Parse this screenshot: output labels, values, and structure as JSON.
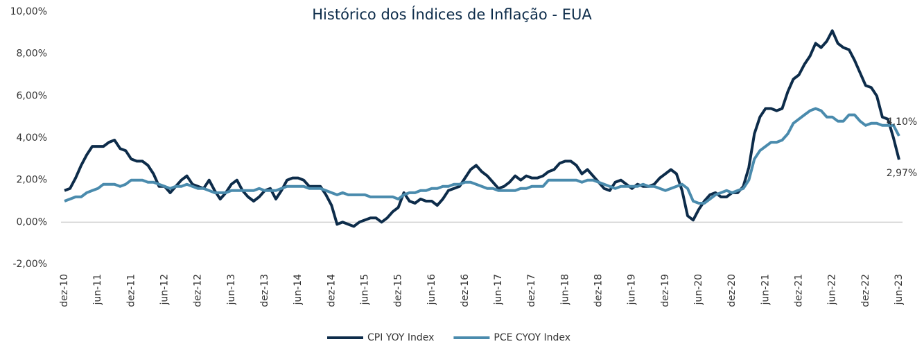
{
  "chart_data": {
    "type": "line",
    "title": "Histórico dos Índices de Inflação - EUA",
    "categories": [
      "dez-10",
      null,
      null,
      null,
      null,
      null,
      "jun-11",
      null,
      null,
      null,
      null,
      null,
      "dez-11",
      null,
      null,
      null,
      null,
      null,
      "jun-12",
      null,
      null,
      null,
      null,
      null,
      "dez-12",
      null,
      null,
      null,
      null,
      null,
      "jun-13",
      null,
      null,
      null,
      null,
      null,
      "dez-13",
      null,
      null,
      null,
      null,
      null,
      "jun-14",
      null,
      null,
      null,
      null,
      null,
      "dez-14",
      null,
      null,
      null,
      null,
      null,
      "jun-15",
      null,
      null,
      null,
      null,
      null,
      "dez-15",
      null,
      null,
      null,
      null,
      null,
      "jun-16",
      null,
      null,
      null,
      null,
      null,
      "dez-16",
      null,
      null,
      null,
      null,
      null,
      "jun-17",
      null,
      null,
      null,
      null,
      null,
      "dez-17",
      null,
      null,
      null,
      null,
      null,
      "jun-18",
      null,
      null,
      null,
      null,
      null,
      "dez-18",
      null,
      null,
      null,
      null,
      null,
      "jun-19",
      null,
      null,
      null,
      null,
      null,
      "dez-19",
      null,
      null,
      null,
      null,
      null,
      "jun-20",
      null,
      null,
      null,
      null,
      null,
      "dez-20",
      null,
      null,
      null,
      null,
      null,
      "jun-21",
      null,
      null,
      null,
      null,
      null,
      "dez-21",
      null,
      null,
      null,
      null,
      null,
      "jun-22",
      null,
      null,
      null,
      null,
      null,
      "dez-22",
      null,
      null,
      null,
      null,
      null,
      "jun-23"
    ],
    "series": [
      {
        "name": "CPI YOY Index",
        "color": "#0d2c4a",
        "end_label": "2,97%",
        "values": [
          1.5,
          1.6,
          2.1,
          2.7,
          3.2,
          3.6,
          3.6,
          3.6,
          3.8,
          3.9,
          3.5,
          3.4,
          3.0,
          2.9,
          2.9,
          2.7,
          2.3,
          1.7,
          1.7,
          1.4,
          1.7,
          2.0,
          2.2,
          1.8,
          1.7,
          1.6,
          2.0,
          1.5,
          1.1,
          1.4,
          1.8,
          2.0,
          1.5,
          1.2,
          1.0,
          1.2,
          1.5,
          1.6,
          1.1,
          1.5,
          2.0,
          2.1,
          2.1,
          2.0,
          1.7,
          1.7,
          1.7,
          1.3,
          0.8,
          -0.1,
          0.0,
          -0.1,
          -0.2,
          0.0,
          0.1,
          0.2,
          0.2,
          0.0,
          0.2,
          0.5,
          0.7,
          1.4,
          1.0,
          0.9,
          1.1,
          1.0,
          1.0,
          0.8,
          1.1,
          1.5,
          1.6,
          1.7,
          2.1,
          2.5,
          2.7,
          2.4,
          2.2,
          1.9,
          1.6,
          1.7,
          1.9,
          2.2,
          2.0,
          2.2,
          2.1,
          2.1,
          2.2,
          2.4,
          2.5,
          2.8,
          2.9,
          2.9,
          2.7,
          2.3,
          2.5,
          2.2,
          1.9,
          1.6,
          1.5,
          1.9,
          2.0,
          1.8,
          1.6,
          1.8,
          1.7,
          1.7,
          1.8,
          2.1,
          2.3,
          2.5,
          2.3,
          1.5,
          0.3,
          0.1,
          0.6,
          1.0,
          1.3,
          1.4,
          1.2,
          1.2,
          1.4,
          1.4,
          1.7,
          2.6,
          4.2,
          5.0,
          5.4,
          5.4,
          5.3,
          5.4,
          6.2,
          6.8,
          7.0,
          7.5,
          7.9,
          8.5,
          8.3,
          8.6,
          9.1,
          8.5,
          8.3,
          8.2,
          7.7,
          7.1,
          6.5,
          6.4,
          6.0,
          5.0,
          4.9,
          4.0,
          2.97
        ]
      },
      {
        "name": "PCE CYOY Index",
        "color": "#4a8bad",
        "end_label": "4,10%",
        "values": [
          1.0,
          1.1,
          1.2,
          1.2,
          1.4,
          1.5,
          1.6,
          1.8,
          1.8,
          1.8,
          1.7,
          1.8,
          2.0,
          2.0,
          2.0,
          1.9,
          1.9,
          1.8,
          1.7,
          1.6,
          1.7,
          1.7,
          1.8,
          1.7,
          1.6,
          1.6,
          1.5,
          1.4,
          1.4,
          1.4,
          1.5,
          1.5,
          1.5,
          1.5,
          1.5,
          1.6,
          1.5,
          1.5,
          1.5,
          1.6,
          1.7,
          1.7,
          1.7,
          1.7,
          1.6,
          1.6,
          1.6,
          1.5,
          1.4,
          1.3,
          1.4,
          1.3,
          1.3,
          1.3,
          1.3,
          1.2,
          1.2,
          1.2,
          1.2,
          1.2,
          1.1,
          1.3,
          1.4,
          1.4,
          1.5,
          1.5,
          1.6,
          1.6,
          1.7,
          1.7,
          1.8,
          1.8,
          1.9,
          1.9,
          1.8,
          1.7,
          1.6,
          1.6,
          1.5,
          1.5,
          1.5,
          1.5,
          1.6,
          1.6,
          1.7,
          1.7,
          1.7,
          2.0,
          2.0,
          2.0,
          2.0,
          2.0,
          2.0,
          1.9,
          2.0,
          2.0,
          1.9,
          1.8,
          1.7,
          1.6,
          1.7,
          1.7,
          1.7,
          1.7,
          1.8,
          1.7,
          1.7,
          1.6,
          1.5,
          1.6,
          1.7,
          1.8,
          1.6,
          1.0,
          0.9,
          0.9,
          1.1,
          1.3,
          1.4,
          1.5,
          1.4,
          1.5,
          1.6,
          2.0,
          3.0,
          3.4,
          3.6,
          3.8,
          3.8,
          3.9,
          4.2,
          4.7,
          4.9,
          5.1,
          5.3,
          5.4,
          5.3,
          5.0,
          5.0,
          4.8,
          4.8,
          5.1,
          5.1,
          4.8,
          4.6,
          4.7,
          4.7,
          4.6,
          4.6,
          4.6,
          4.1
        ]
      }
    ],
    "ylim": [
      -2,
      10
    ],
    "yticks": [
      {
        "value": -2,
        "label": "-2,00%"
      },
      {
        "value": 0,
        "label": "0,00%"
      },
      {
        "value": 2,
        "label": "2,00%"
      },
      {
        "value": 4,
        "label": "4,00%"
      },
      {
        "value": 6,
        "label": "6,00%"
      },
      {
        "value": 8,
        "label": "8,00%"
      },
      {
        "value": 10,
        "label": "10,00%"
      }
    ],
    "legend": "bottom"
  }
}
